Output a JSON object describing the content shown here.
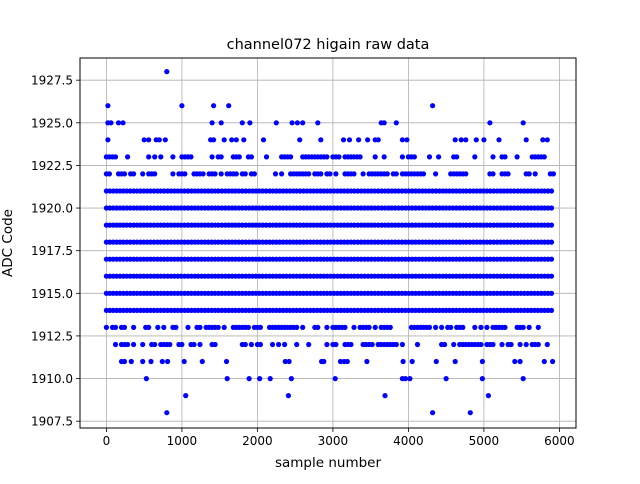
{
  "chart_data": {
    "type": "scatter",
    "title": "channel072 higain raw data",
    "xlabel": "sample number",
    "ylabel": "ADC Code",
    "xlim": [
      -350,
      6220
    ],
    "ylim": [
      1907.1,
      1928.8
    ],
    "x_ticks": [
      0,
      1000,
      2000,
      3000,
      4000,
      5000,
      6000
    ],
    "y_ticks": [
      1907.5,
      1910.0,
      1912.5,
      1915.0,
      1917.5,
      1920.0,
      1922.5,
      1925.0,
      1927.5
    ],
    "x_tick_labels": [
      "0",
      "1000",
      "2000",
      "3000",
      "4000",
      "5000",
      "6000"
    ],
    "y_tick_labels": [
      "1907.5",
      "1910.0",
      "1912.5",
      "1915.0",
      "1917.5",
      "1920.0",
      "1922.5",
      "1925.0",
      "1927.5"
    ],
    "grid": true,
    "marker_color": "#0000ff",
    "x_range": [
      0,
      5930
    ],
    "dense_levels": [
      1914,
      1915,
      1916,
      1917,
      1918,
      1919,
      1920,
      1921
    ],
    "medium_levels": [
      1913,
      1922
    ],
    "sparse_levels": [
      1912,
      1923
    ],
    "points": [
      [
        800,
        1928
      ],
      [
        20,
        1926
      ],
      [
        1000,
        1926
      ],
      [
        1420,
        1926
      ],
      [
        1620,
        1926
      ],
      [
        4320,
        1926
      ],
      [
        20,
        1925
      ],
      [
        60,
        1925
      ],
      [
        160,
        1925
      ],
      [
        220,
        1925
      ],
      [
        1400,
        1925
      ],
      [
        1520,
        1925
      ],
      [
        1800,
        1925
      ],
      [
        1900,
        1925
      ],
      [
        2250,
        1925
      ],
      [
        2460,
        1925
      ],
      [
        2530,
        1925
      ],
      [
        2600,
        1925
      ],
      [
        2800,
        1925
      ],
      [
        3640,
        1925
      ],
      [
        3680,
        1925
      ],
      [
        3840,
        1925
      ],
      [
        5080,
        1925
      ],
      [
        5520,
        1925
      ],
      [
        20,
        1924
      ],
      [
        500,
        1924
      ],
      [
        560,
        1924
      ],
      [
        660,
        1924
      ],
      [
        700,
        1924
      ],
      [
        780,
        1924
      ],
      [
        1380,
        1924
      ],
      [
        1420,
        1924
      ],
      [
        1560,
        1924
      ],
      [
        1660,
        1924
      ],
      [
        1720,
        1924
      ],
      [
        1820,
        1924
      ],
      [
        2080,
        1924
      ],
      [
        2560,
        1924
      ],
      [
        2840,
        1924
      ],
      [
        3140,
        1924
      ],
      [
        3220,
        1924
      ],
      [
        3340,
        1924
      ],
      [
        3460,
        1924
      ],
      [
        3560,
        1924
      ],
      [
        3600,
        1924
      ],
      [
        3920,
        1924
      ],
      [
        3980,
        1924
      ],
      [
        4620,
        1924
      ],
      [
        4700,
        1924
      ],
      [
        4760,
        1924
      ],
      [
        4900,
        1924
      ],
      [
        5000,
        1924
      ],
      [
        5200,
        1924
      ],
      [
        5560,
        1924
      ],
      [
        5780,
        1924
      ],
      [
        5840,
        1924
      ],
      [
        800,
        1908
      ],
      [
        4320,
        1908
      ],
      [
        4820,
        1908
      ],
      [
        1050,
        1909
      ],
      [
        2410,
        1909
      ],
      [
        3690,
        1909
      ],
      [
        5060,
        1909
      ],
      [
        530,
        1910
      ],
      [
        1600,
        1910
      ],
      [
        1890,
        1910
      ],
      [
        2030,
        1910
      ],
      [
        2170,
        1910
      ],
      [
        2450,
        1910
      ],
      [
        3030,
        1910
      ],
      [
        3920,
        1910
      ],
      [
        3960,
        1910
      ],
      [
        4020,
        1910
      ],
      [
        4500,
        1910
      ],
      [
        4980,
        1910
      ],
      [
        5520,
        1910
      ],
      [
        200,
        1911
      ],
      [
        240,
        1911
      ],
      [
        330,
        1911
      ],
      [
        480,
        1911
      ],
      [
        590,
        1911
      ],
      [
        740,
        1911
      ],
      [
        810,
        1911
      ],
      [
        1030,
        1911
      ],
      [
        1270,
        1911
      ],
      [
        1590,
        1911
      ],
      [
        2370,
        1911
      ],
      [
        2420,
        1911
      ],
      [
        2850,
        1911
      ],
      [
        2880,
        1911
      ],
      [
        3100,
        1911
      ],
      [
        3150,
        1911
      ],
      [
        3190,
        1911
      ],
      [
        3450,
        1911
      ],
      [
        3930,
        1911
      ],
      [
        4050,
        1911
      ],
      [
        4370,
        1911
      ],
      [
        4620,
        1911
      ],
      [
        4980,
        1911
      ],
      [
        5410,
        1911
      ],
      [
        5480,
        1911
      ],
      [
        5800,
        1911
      ],
      [
        5910,
        1911
      ]
    ]
  }
}
